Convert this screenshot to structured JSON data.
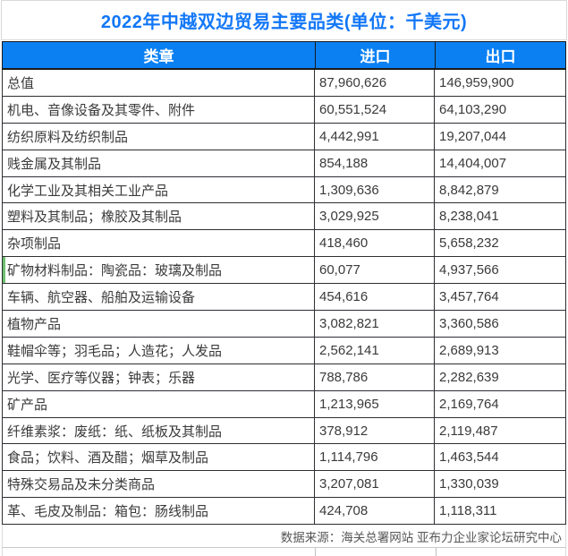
{
  "title": "2022年中越双边贸易主要品类(单位：千美元)",
  "colors": {
    "title_blue": "#1277f7",
    "header_bg_blue": "#0a80f3",
    "header_text": "#ffffff",
    "body_text": "#3a3a3a",
    "dark_border": "#2e2e34",
    "light_border": "#d9d9d9",
    "green_marker": "#6fbf72",
    "footer_text": "#565656"
  },
  "table": {
    "headers": [
      "类章",
      "进口",
      "出口"
    ],
    "rows": [
      [
        "总值",
        "87,960,626",
        "146,959,900"
      ],
      [
        "机电、音像设备及其零件、附件",
        "60,551,524",
        "64,103,290"
      ],
      [
        "纺织原料及纺织制品",
        "4,442,991",
        "19,207,044"
      ],
      [
        "贱金属及其制品",
        "854,188",
        "14,404,007"
      ],
      [
        "化学工业及其相关工业产品",
        "1,309,636",
        "8,842,879"
      ],
      [
        "塑料及其制品；橡胶及其制品",
        "3,029,925",
        "8,238,041"
      ],
      [
        "杂项制品",
        "418,460",
        "5,658,232"
      ],
      [
        "矿物材料制品：陶瓷品：玻璃及制品",
        "60,077",
        "4,937,566"
      ],
      [
        "车辆、航空器、船舶及运输设备",
        "454,616",
        "3,457,764"
      ],
      [
        "植物产品",
        "3,082,821",
        "3,360,586"
      ],
      [
        "鞋帽伞等；羽毛品；人造花；人发品",
        "2,562,141",
        "2,689,913"
      ],
      [
        "光学、医疗等仪器；钟表；乐器",
        "788,786",
        "2,282,639"
      ],
      [
        "矿产品",
        "1,213,965",
        "2,169,764"
      ],
      [
        "纤维素浆：废纸：纸、纸板及其制品",
        "378,912",
        "2,119,487"
      ],
      [
        "食品；饮料、酒及醋；烟草及制品",
        "1,114,796",
        "1,463,544"
      ],
      [
        "特殊交易品及未分类商品",
        "3,207,081",
        "1,330,039"
      ],
      [
        "革、毛皮及制品：箱包：肠线制品",
        "424,708",
        "1,118,311"
      ]
    ],
    "green_marker_row_index": 7
  },
  "footer": {
    "text": "数据来源：海关总署网站 亚布力企业家论坛研究中心"
  },
  "chart_data": {
    "type": "table",
    "title": "2022年中越双边贸易主要品类(单位：千美元)",
    "unit": "千美元",
    "columns": [
      "类章",
      "进口",
      "出口"
    ],
    "rows": [
      {
        "category": "总值",
        "import": 87960626,
        "export": 146959900
      },
      {
        "category": "机电、音像设备及其零件、附件",
        "import": 60551524,
        "export": 64103290
      },
      {
        "category": "纺织原料及纺织制品",
        "import": 4442991,
        "export": 19207044
      },
      {
        "category": "贱金属及其制品",
        "import": 854188,
        "export": 14404007
      },
      {
        "category": "化学工业及其相关工业产品",
        "import": 1309636,
        "export": 8842879
      },
      {
        "category": "塑料及其制品；橡胶及其制品",
        "import": 3029925,
        "export": 8238041
      },
      {
        "category": "杂项制品",
        "import": 418460,
        "export": 5658232
      },
      {
        "category": "矿物材料制品：陶瓷品：玻璃及制品",
        "import": 60077,
        "export": 4937566
      },
      {
        "category": "车辆、航空器、船舶及运输设备",
        "import": 454616,
        "export": 3457764
      },
      {
        "category": "植物产品",
        "import": 3082821,
        "export": 3360586
      },
      {
        "category": "鞋帽伞等；羽毛品；人造花；人发品",
        "import": 2562141,
        "export": 2689913
      },
      {
        "category": "光学、医疗等仪器；钟表；乐器",
        "import": 788786,
        "export": 2282639
      },
      {
        "category": "矿产品",
        "import": 1213965,
        "export": 2169764
      },
      {
        "category": "纤维素浆：废纸：纸、纸板及其制品",
        "import": 378912,
        "export": 2119487
      },
      {
        "category": "食品；饮料、酒及醋；烟草及制品",
        "import": 1114796,
        "export": 1463544
      },
      {
        "category": "特殊交易品及未分类商品",
        "import": 3207081,
        "export": 1330039
      },
      {
        "category": "革、毛皮及制品：箱包：肠线制品",
        "import": 424708,
        "export": 1118311
      }
    ]
  }
}
